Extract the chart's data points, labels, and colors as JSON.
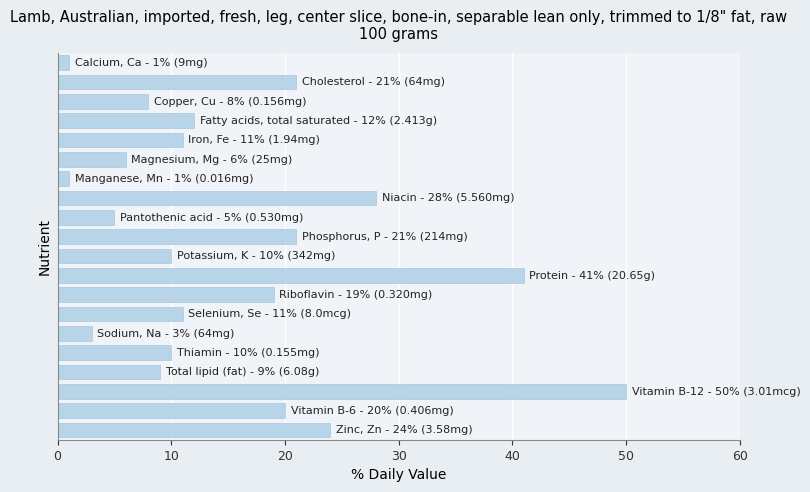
{
  "title": "Lamb, Australian, imported, fresh, leg, center slice, bone-in, separable lean only, trimmed to 1/8\" fat, raw\n100 grams",
  "xlabel": "% Daily Value",
  "ylabel": "Nutrient",
  "background_color": "#e8eef2",
  "plot_bg_color": "#f0f4f8",
  "bar_color": "#b8d4e8",
  "bar_edge_color": "#a0bfd8",
  "nutrients": [
    "Calcium, Ca - 1% (9mg)",
    "Cholesterol - 21% (64mg)",
    "Copper, Cu - 8% (0.156mg)",
    "Fatty acids, total saturated - 12% (2.413g)",
    "Iron, Fe - 11% (1.94mg)",
    "Magnesium, Mg - 6% (25mg)",
    "Manganese, Mn - 1% (0.016mg)",
    "Niacin - 28% (5.560mg)",
    "Pantothenic acid - 5% (0.530mg)",
    "Phosphorus, P - 21% (214mg)",
    "Potassium, K - 10% (342mg)",
    "Protein - 41% (20.65g)",
    "Riboflavin - 19% (0.320mg)",
    "Selenium, Se - 11% (8.0mcg)",
    "Sodium, Na - 3% (64mg)",
    "Thiamin - 10% (0.155mg)",
    "Total lipid (fat) - 9% (6.08g)",
    "Vitamin B-12 - 50% (3.01mcg)",
    "Vitamin B-6 - 20% (0.406mg)",
    "Zinc, Zn - 24% (3.58mg)"
  ],
  "values": [
    1,
    21,
    8,
    12,
    11,
    6,
    1,
    28,
    5,
    21,
    10,
    41,
    19,
    11,
    3,
    10,
    9,
    50,
    20,
    24
  ],
  "xlim": [
    0,
    60
  ],
  "xticks": [
    0,
    10,
    20,
    30,
    40,
    50,
    60
  ],
  "title_fontsize": 10.5,
  "axis_label_fontsize": 10,
  "tick_fontsize": 9,
  "bar_label_fontsize": 8,
  "bar_height": 0.75
}
